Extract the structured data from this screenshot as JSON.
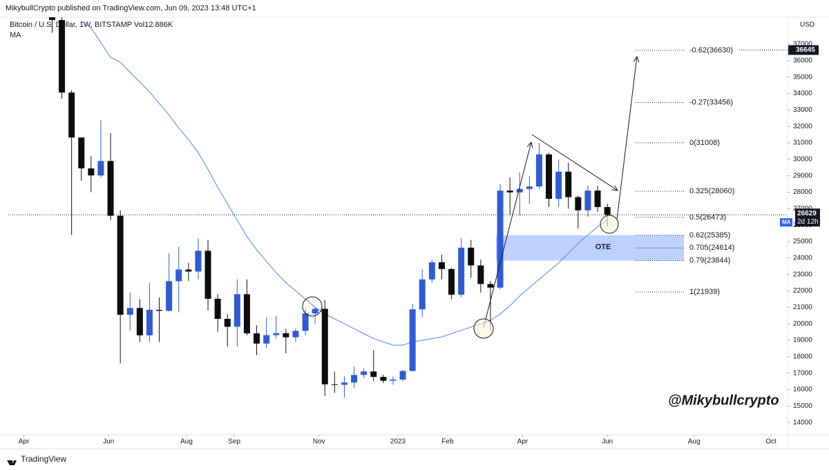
{
  "header": {
    "published": "MikybullCrypto published on TradingView.com, Jun 09, 2023 13:48 UTC+1",
    "footer": "TradingView"
  },
  "chart_data": {
    "type": "candlestick",
    "title": "Bitcoin / U.S. Dollar, 1W, BITSTAMP  Vol12.886K",
    "indicator_label": "MA",
    "currency": "USD",
    "watermark": "@Mikybullcrypto",
    "up_color": "#2f5bd6",
    "down_color": "#0d0d0d",
    "ma_color": "#4a86e8",
    "xlim": [
      -4.5,
      75.5
    ],
    "xticks": [
      {
        "value": -2.9,
        "label": "Apr"
      },
      {
        "value": 5.8,
        "label": "Jun"
      },
      {
        "value": 13.8,
        "label": "Aug"
      },
      {
        "value": 18.7,
        "label": "Sep"
      },
      {
        "value": 27.4,
        "label": "Nov"
      },
      {
        "value": 35.5,
        "label": "2023"
      },
      {
        "value": 40.6,
        "label": "Feb"
      },
      {
        "value": 48.3,
        "label": "Apr"
      },
      {
        "value": 57,
        "label": "Jun"
      },
      {
        "value": 65.9,
        "label": "Aug"
      },
      {
        "value": 73.8,
        "label": "Oct"
      }
    ],
    "ylim": [
      13250,
      38640
    ],
    "yticks": [
      14000,
      15000,
      16000,
      17000,
      18000,
      19000,
      20000,
      21000,
      22000,
      23000,
      24000,
      25000,
      26000,
      27000,
      28000,
      29000,
      30000,
      31000,
      32000,
      33000,
      34000,
      35000,
      36000,
      37000
    ],
    "grid": false,
    "candles": {
      "open": [
        39450,
        38470,
        34060,
        31330,
        29450,
        29020,
        29900,
        26570,
        20550,
        20960,
        19300,
        20850,
        20790,
        22590,
        23300,
        23180,
        24440,
        21520,
        20300,
        19820,
        21800,
        19420,
        18800,
        19310,
        19430,
        19180,
        19570,
        20630,
        20910,
        16320,
        16290,
        16430,
        16890,
        17100,
        16770,
        16540,
        16610,
        17130,
        20880,
        22700,
        23740,
        23330,
        21770,
        24630,
        23550,
        22420,
        22200,
        28100,
        27990,
        28200,
        28350,
        30300,
        27600,
        29250,
        27700,
        26900,
        28100,
        27100
      ],
      "high": [
        40800,
        39900,
        34200,
        31300,
        30200,
        32400,
        31600,
        26900,
        21900,
        21500,
        22500,
        21600,
        24300,
        24700,
        23700,
        25200,
        25100,
        21800,
        20600,
        22700,
        22700,
        19900,
        20400,
        20500,
        19700,
        19700,
        20900,
        21000,
        21450,
        17100,
        16800,
        17400,
        17300,
        18400,
        16900,
        16800,
        17200,
        21200,
        23300,
        23900,
        24200,
        23400,
        25200,
        25100,
        23900,
        22600,
        28500,
        28900,
        29200,
        29000,
        31000,
        30400,
        30000,
        29800,
        27800,
        28400,
        28400,
        27300
      ],
      "low": [
        37700,
        33700,
        25400,
        28700,
        28000,
        28900,
        26300,
        17600,
        19600,
        18900,
        18900,
        18900,
        20750,
        20700,
        22600,
        22700,
        20800,
        19500,
        18600,
        18600,
        19300,
        18100,
        18500,
        19100,
        18200,
        18900,
        19300,
        20000,
        15600,
        15800,
        15500,
        16100,
        16700,
        16500,
        16400,
        16300,
        16500,
        17100,
        20400,
        22500,
        22700,
        21500,
        21600,
        22800,
        21900,
        19600,
        22100,
        26600,
        26600,
        27300,
        28200,
        27100,
        27100,
        27000,
        25800,
        26500,
        26800,
        25900
      ],
      "close": [
        38470,
        34060,
        31330,
        29450,
        29020,
        29900,
        26570,
        20550,
        20960,
        19300,
        20850,
        20790,
        22590,
        23300,
        23180,
        24440,
        21520,
        20300,
        19820,
        21800,
        19420,
        18800,
        19310,
        19430,
        19180,
        19570,
        20630,
        20910,
        16320,
        16290,
        16430,
        16890,
        17100,
        16770,
        16540,
        16610,
        17130,
        20880,
        22700,
        23740,
        23330,
        21770,
        24630,
        23550,
        22420,
        22200,
        28100,
        27990,
        28200,
        28350,
        30300,
        27600,
        29250,
        27700,
        26900,
        28100,
        27100,
        26629
      ]
    },
    "ma": [
      null,
      null,
      null,
      38400,
      38000,
      37100,
      36200,
      35900,
      35300,
      34700,
      34100,
      33400,
      32700,
      31900,
      31200,
      30400,
      29400,
      28300,
      27300,
      26300,
      25300,
      24500,
      23800,
      23100,
      22500,
      22000,
      21500,
      21000,
      20600,
      20300,
      20000,
      19700,
      19400,
      19100,
      18900,
      18700,
      18700,
      18900,
      19000,
      19100,
      19200,
      19400,
      19600,
      19800,
      20000,
      20200,
      20600,
      21100,
      21700,
      22200,
      22700,
      23200,
      23700,
      24300,
      24900,
      25400,
      25900,
      26300
    ],
    "countdown": "2d 12h",
    "marker_price": 36645,
    "fib_levels": [
      {
        "value": 36630,
        "label": "-0.62(36630)"
      },
      {
        "value": 33456,
        "label": "-0.27(33456)"
      },
      {
        "value": 31008,
        "label": "0(31008)"
      },
      {
        "value": 28060,
        "label": "0.325(28060)"
      },
      {
        "value": 26473,
        "label": "0.5(26473)"
      },
      {
        "value": 25385,
        "label": "0.62(25385)"
      },
      {
        "value": 24614,
        "label": "0.705(24614)"
      },
      {
        "value": 23844,
        "label": "0.79(23844)"
      },
      {
        "value": 21939,
        "label": "1(21939)"
      }
    ],
    "ote_zone": {
      "label": "OTE",
      "high": 25385,
      "low": 23844
    }
  }
}
